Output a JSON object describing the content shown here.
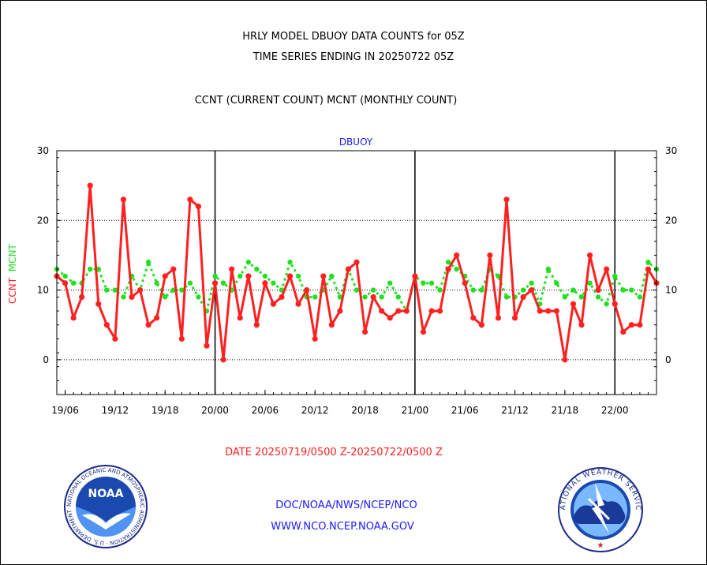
{
  "title_line1": "HRLY MODEL DBUOY DATA COUNTS for 05Z",
  "title_line2": "TIME SERIES ENDING IN 20250722 05Z",
  "title_line3": "CCNT (CURRENT COUNT) MCNT (MONTHLY COUNT)",
  "footer_date_range": "DATE 20250719/0500 Z-20250722/0500 Z",
  "footer_org": "DOC/NOAA/NWS/NCEP/NCO",
  "footer_url": "WWW.NCO.NCEP.NOAA.GOV",
  "logo_left_text": "NOAA",
  "logo_left_ring": "NATIONAL OCEANIC AND ATMOSPHERIC ADMINISTRATION · U.S. DEPARTMENT OF COMMERCE ·",
  "logo_right_ring": "NATIONAL WEATHER SERVICE",
  "colors": {
    "ccnt": "#ff2020",
    "mcnt": "#20e020",
    "panel_label": "#1a1aff"
  },
  "chart_data": {
    "type": "line",
    "title": "DBUOY",
    "ylabel_ccnt": "CCNT",
    "ylabel_mcnt": "MCNT",
    "ylim": [
      -5,
      30
    ],
    "yticks": [
      0,
      10,
      20,
      30
    ],
    "xlim": [
      5,
      77
    ],
    "x_unit": "hours since 20250719 00Z",
    "xtick_values": [
      6,
      12,
      18,
      24,
      30,
      36,
      42,
      48,
      54,
      60,
      66,
      72
    ],
    "xtick_labels": [
      "19/06",
      "19/12",
      "19/18",
      "20/00",
      "20/06",
      "20/12",
      "20/18",
      "21/00",
      "21/06",
      "21/12",
      "21/18",
      "22/00"
    ],
    "day_dividers": [
      24,
      48,
      72
    ],
    "gridlines_y": [
      0,
      10,
      20
    ],
    "x": [
      5,
      6,
      7,
      8,
      9,
      10,
      11,
      12,
      13,
      14,
      15,
      16,
      17,
      18,
      19,
      20,
      21,
      22,
      23,
      24,
      25,
      26,
      27,
      28,
      29,
      30,
      31,
      32,
      33,
      34,
      35,
      36,
      37,
      38,
      39,
      40,
      41,
      42,
      43,
      44,
      45,
      46,
      47,
      48,
      49,
      50,
      51,
      52,
      53,
      54,
      55,
      56,
      57,
      58,
      59,
      60,
      61,
      62,
      63,
      64,
      65,
      66,
      67,
      68,
      69,
      70,
      71,
      72,
      73,
      74,
      75,
      76,
      77
    ],
    "series": [
      {
        "name": "CCNT",
        "values": [
          12,
          11,
          6,
          9,
          25,
          8,
          5,
          3,
          23,
          9,
          10,
          5,
          6,
          12,
          13,
          3,
          23,
          22,
          2,
          11,
          0,
          13,
          6,
          12,
          5,
          11,
          8,
          9,
          12,
          8,
          10,
          3,
          12,
          5,
          7,
          13,
          14,
          4,
          9,
          7,
          6,
          7,
          7,
          12,
          4,
          7,
          7,
          13,
          15,
          11,
          6,
          5,
          15,
          6,
          23,
          6,
          9,
          10,
          7,
          7,
          7,
          0,
          8,
          5,
          15,
          10,
          13,
          8,
          4,
          5,
          5,
          13,
          11
        ]
      },
      {
        "name": "MCNT",
        "values": [
          13,
          12,
          11,
          11,
          13,
          13,
          10,
          10,
          9,
          12,
          10,
          14,
          11,
          9,
          10,
          10,
          11,
          9,
          7,
          12,
          11,
          10,
          12,
          14,
          13,
          12,
          11,
          10,
          14,
          12,
          9,
          9,
          10,
          12,
          9,
          13,
          10,
          9,
          10,
          9,
          11,
          9,
          7,
          12,
          11,
          11,
          10,
          14,
          13,
          12,
          10,
          10,
          13,
          12,
          9,
          9,
          10,
          11,
          8,
          13,
          11,
          9,
          10,
          9,
          11,
          9,
          8,
          12,
          10,
          10,
          9,
          14,
          13
        ]
      }
    ]
  }
}
